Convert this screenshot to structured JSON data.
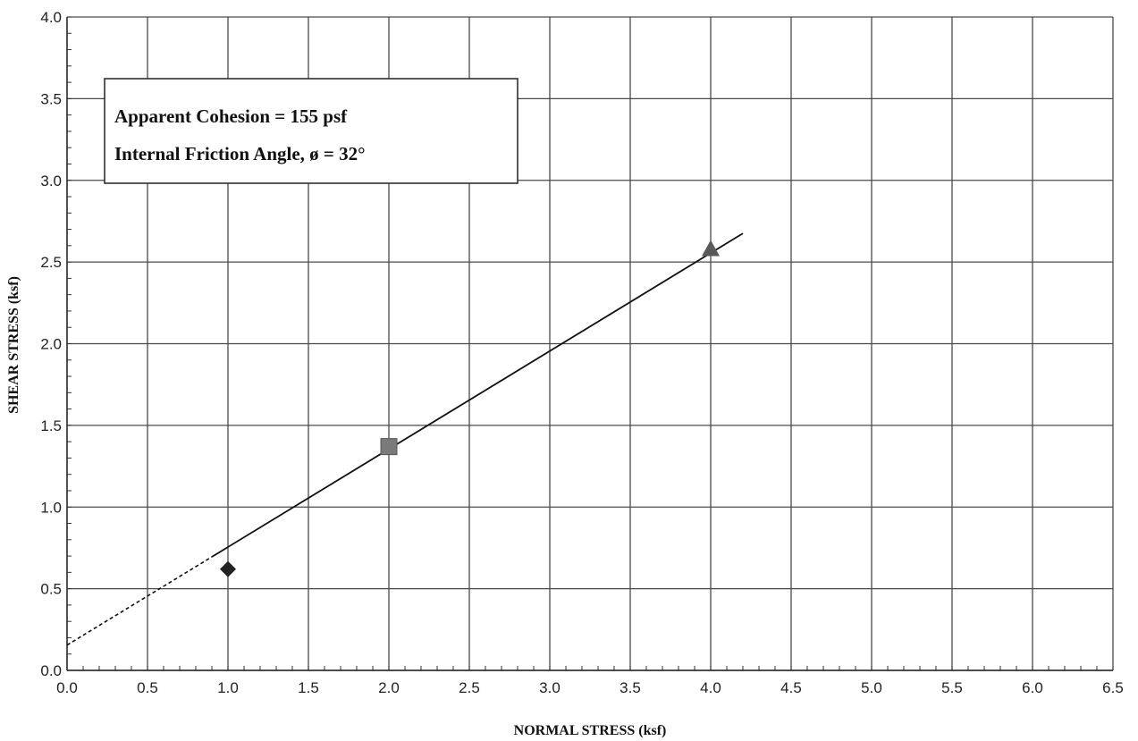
{
  "chart_data": {
    "type": "scatter",
    "xlabel": "NORMAL STRESS (ksf)",
    "ylabel": "SHEAR STRESS (ksf)",
    "xlim": [
      0,
      6.5
    ],
    "ylim": [
      0,
      4.0
    ],
    "x_ticks": [
      "0.0",
      "0.5",
      "1.0",
      "1.5",
      "2.0",
      "2.5",
      "3.0",
      "3.5",
      "4.0",
      "4.5",
      "5.0",
      "5.5",
      "6.0",
      "6.5"
    ],
    "y_ticks": [
      "0.0",
      "0.5",
      "1.0",
      "1.5",
      "2.0",
      "2.5",
      "3.0",
      "3.5",
      "4.0"
    ],
    "grid": true,
    "series": [
      {
        "marker": "diamond",
        "color": "#222222",
        "x": [
          1.0
        ],
        "y": [
          0.62
        ]
      },
      {
        "marker": "square",
        "color": "#7a7a7a",
        "x": [
          2.0
        ],
        "y": [
          1.37
        ]
      },
      {
        "marker": "triangle",
        "color": "#5a5a5a",
        "x": [
          4.0
        ],
        "y": [
          2.58
        ]
      }
    ],
    "fit_line": {
      "intercept": 0.155,
      "slope": 0.6,
      "dashed_range": [
        0,
        0.9
      ],
      "solid_range": [
        0.9,
        4.2
      ]
    },
    "annotations": [
      "Apparent Cohesion = 155 psf",
      "Internal Friction Angle, ø = 32°"
    ]
  }
}
